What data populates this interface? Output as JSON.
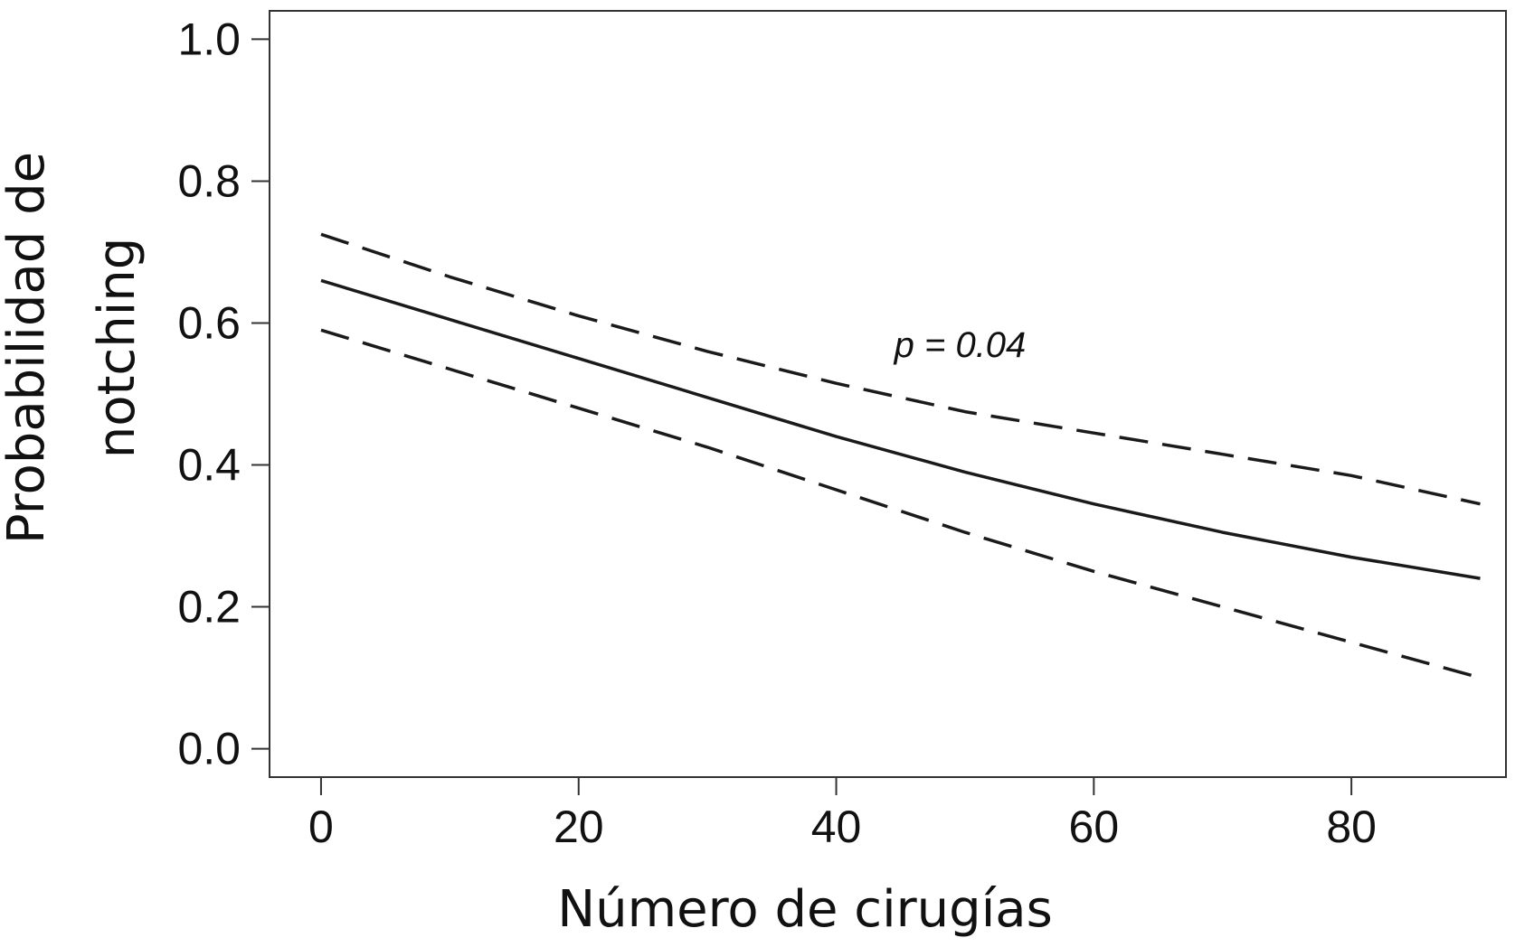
{
  "chart_data": {
    "type": "line",
    "title": "",
    "xlabel": "Número de cirugías",
    "ylabel_lines": [
      "Probabilidad de",
      "notching"
    ],
    "xlim": [
      -4,
      92
    ],
    "ylim": [
      -0.04,
      1.04
    ],
    "x_ticks": [
      {
        "value": 0,
        "label": "0"
      },
      {
        "value": 20,
        "label": "20"
      },
      {
        "value": 40,
        "label": "40"
      },
      {
        "value": 60,
        "label": "60"
      },
      {
        "value": 80,
        "label": "80"
      }
    ],
    "y_ticks": [
      {
        "value": 0.0,
        "label": "0.0"
      },
      {
        "value": 0.2,
        "label": "0.2"
      },
      {
        "value": 0.4,
        "label": "0.4"
      },
      {
        "value": 0.6,
        "label": "0.6"
      },
      {
        "value": 0.8,
        "label": "0.8"
      },
      {
        "value": 1.0,
        "label": "1.0"
      }
    ],
    "grid": false,
    "legend": "none",
    "annotation": {
      "text": "p = 0.04",
      "x": 44.5,
      "y": 0.57
    },
    "line_color": "#1a1a1a",
    "series": [
      {
        "style": "dashed",
        "x": [
          0,
          10,
          20,
          30,
          40,
          50,
          60,
          70,
          80,
          90
        ],
        "y": [
          0.725,
          0.665,
          0.61,
          0.56,
          0.515,
          0.475,
          0.445,
          0.415,
          0.385,
          0.345
        ]
      },
      {
        "style": "solid",
        "x": [
          0,
          10,
          20,
          30,
          40,
          50,
          60,
          70,
          80,
          90
        ],
        "y": [
          0.66,
          0.605,
          0.55,
          0.495,
          0.44,
          0.39,
          0.345,
          0.305,
          0.27,
          0.24
        ]
      },
      {
        "style": "dashed",
        "x": [
          0,
          10,
          20,
          30,
          40,
          50,
          60,
          70,
          80,
          90
        ],
        "y": [
          0.59,
          0.535,
          0.48,
          0.425,
          0.365,
          0.305,
          0.25,
          0.2,
          0.15,
          0.1
        ]
      }
    ]
  }
}
